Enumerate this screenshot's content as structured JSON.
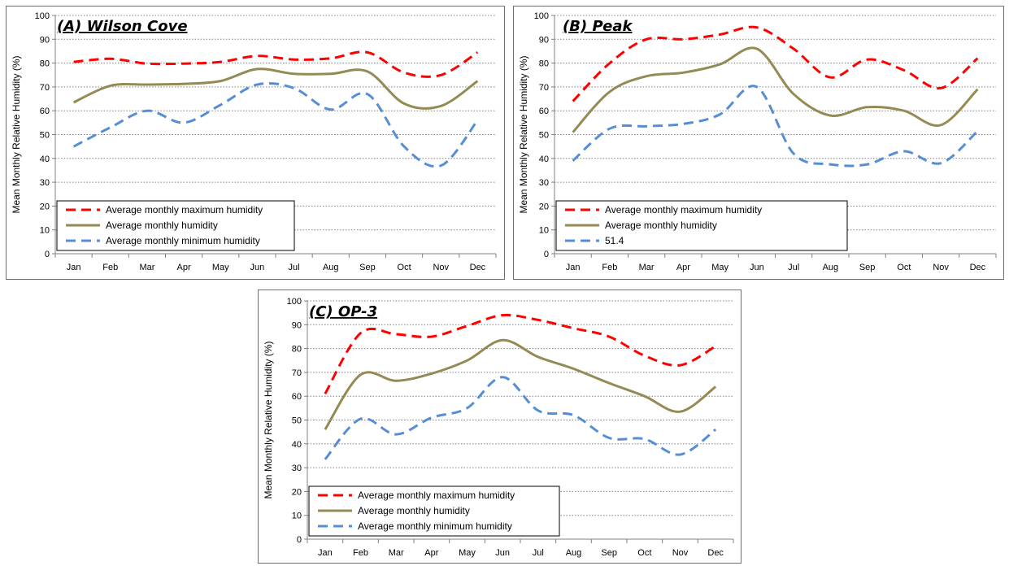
{
  "chart_data": [
    {
      "type": "line",
      "title": "(A) Wilson Cove",
      "xlabel": "",
      "ylabel": "Mean Monthly Relative Humidity (%)",
      "categories": [
        "Jan",
        "Feb",
        "Mar",
        "Apr",
        "May",
        "Jun",
        "Jul",
        "Aug",
        "Sep",
        "Oct",
        "Nov",
        "Dec"
      ],
      "ylim": [
        0,
        100
      ],
      "yticks": [
        0,
        10,
        20,
        30,
        40,
        50,
        60,
        70,
        80,
        90,
        100
      ],
      "grid": "horizontal dotted",
      "legend_position": "bottom-left",
      "series": [
        {
          "name": "Average monthly maximum humidity",
          "color": "#ff0000",
          "style": "dashed",
          "values": [
            80.5,
            81.8,
            79.8,
            79.8,
            80.5,
            83,
            81.5,
            82,
            84.5,
            76,
            75,
            84.5
          ]
        },
        {
          "name": "Average monthly humidity",
          "color": "#948a54",
          "style": "solid",
          "values": [
            63.5,
            70.5,
            71,
            71.3,
            72.5,
            77.5,
            75.5,
            75.5,
            76.5,
            63,
            62,
            72.5
          ]
        },
        {
          "name": "Average monthly minimum humidity",
          "color": "#558ed5",
          "style": "dashed",
          "values": [
            45,
            53,
            60,
            55,
            62.5,
            71,
            69.5,
            60.5,
            67,
            45,
            37,
            56
          ]
        }
      ]
    },
    {
      "type": "line",
      "title": "(B) Peak",
      "xlabel": "",
      "ylabel": "Mean Monthly Relative Humidity (%)",
      "categories": [
        "Jan",
        "Feb",
        "Mar",
        "Apr",
        "May",
        "Jun",
        "Jul",
        "Aug",
        "Sep",
        "Oct",
        "Nov",
        "Dec"
      ],
      "ylim": [
        0,
        100
      ],
      "yticks": [
        0,
        10,
        20,
        30,
        40,
        50,
        60,
        70,
        80,
        90,
        100
      ],
      "grid": "horizontal dotted",
      "legend_position": "bottom-left",
      "series": [
        {
          "name": "Average monthly maximum humidity",
          "color": "#ff0000",
          "style": "dashed",
          "values": [
            64,
            80,
            90,
            90,
            92,
            95,
            86,
            74,
            81.5,
            77,
            69.5,
            82
          ]
        },
        {
          "name": "Average monthly humidity",
          "color": "#948a54",
          "style": "solid",
          "values": [
            51,
            68,
            74.5,
            76,
            79.5,
            86,
            67,
            58,
            61.5,
            60,
            54,
            69
          ]
        },
        {
          "name": "51.4",
          "color": "#558ed5",
          "style": "dashed",
          "values": [
            39,
            52.5,
            53.5,
            54.5,
            58.5,
            70,
            42,
            37.5,
            37.5,
            43,
            38,
            51.5
          ]
        }
      ]
    },
    {
      "type": "line",
      "title": "(C) OP-3",
      "xlabel": "",
      "ylabel": "Mean Monthly Relative Humidity (%)",
      "categories": [
        "Jan",
        "Feb",
        "Mar",
        "Apr",
        "May",
        "Jun",
        "Jul",
        "Aug",
        "Sep",
        "Oct",
        "Nov",
        "Dec"
      ],
      "ylim": [
        0,
        100
      ],
      "yticks": [
        0,
        10,
        20,
        30,
        40,
        50,
        60,
        70,
        80,
        90,
        100
      ],
      "grid": "horizontal dotted",
      "legend_position": "bottom-left",
      "series": [
        {
          "name": "Average monthly maximum humidity",
          "color": "#ff0000",
          "style": "dashed",
          "values": [
            61,
            86.5,
            86,
            85,
            89.5,
            94,
            92,
            88.5,
            85,
            77,
            73,
            81
          ]
        },
        {
          "name": "Average monthly humidity",
          "color": "#948a54",
          "style": "solid",
          "values": [
            46,
            69,
            66.5,
            69.5,
            75,
            83.5,
            76.5,
            71.5,
            65.5,
            60,
            53.5,
            64
          ]
        },
        {
          "name": "Average monthly minimum humidity",
          "color": "#558ed5",
          "style": "dashed",
          "values": [
            33.5,
            50.5,
            44,
            51,
            55,
            68,
            54,
            52,
            42.5,
            42,
            35.5,
            46
          ]
        }
      ]
    }
  ]
}
